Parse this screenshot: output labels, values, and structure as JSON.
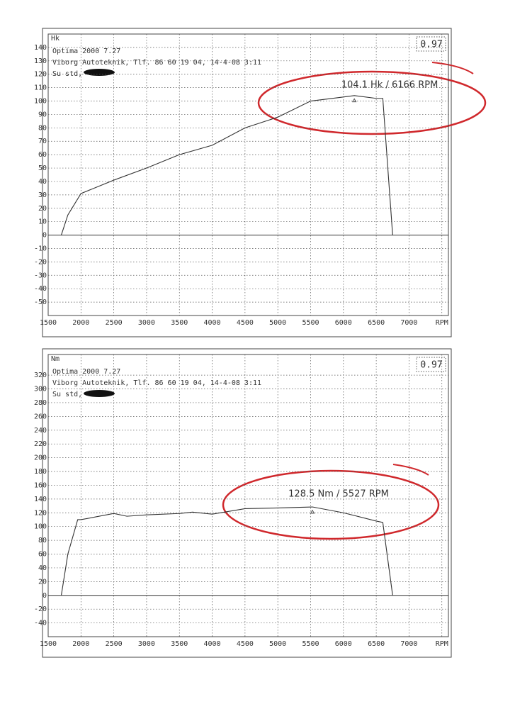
{
  "chart_data": [
    {
      "type": "line",
      "y_label": "Hk",
      "notes": [
        "Optima 2000 7.27",
        "Viborg Autoteknik, Tlf. 86 60 19 04, 14-4-08  3:11",
        "Su std,"
      ],
      "corner_label": "0.97",
      "annotation": "104.1 Hk / 6166 RPM",
      "x": [
        1700,
        1800,
        2000,
        2500,
        3000,
        3500,
        4000,
        4500,
        5000,
        5500,
        6000,
        6166,
        6500,
        6600,
        6750
      ],
      "series": [
        {
          "color": "#333333",
          "values": [
            0,
            15,
            31,
            41,
            50,
            60,
            67,
            80,
            88,
            100,
            103,
            104.1,
            102,
            102,
            0
          ]
        }
      ],
      "xlim": [
        1500,
        7600
      ],
      "xticks": [
        1500,
        2000,
        2500,
        3000,
        3500,
        4000,
        4500,
        5000,
        5500,
        6000,
        6500,
        7000,
        {
          "value": 7500,
          "label": "RPM"
        }
      ],
      "ylim": [
        -60,
        150
      ],
      "yticks": [
        140,
        130,
        120,
        110,
        100,
        90,
        80,
        70,
        60,
        50,
        40,
        30,
        20,
        10,
        0,
        -10,
        -20,
        -30,
        -40,
        -50
      ],
      "grid": true
    },
    {
      "type": "line",
      "y_label": "Nm",
      "notes": [
        "Optima 2000 7.27",
        "Viborg Autoteknik, Tlf. 86 60 19 04, 14-4-08  3:11",
        "Su std,"
      ],
      "corner_label": "0.97",
      "annotation": "128.5 Nm / 5527 RPM",
      "x": [
        1700,
        1800,
        1950,
        2000,
        2500,
        2700,
        3000,
        3500,
        3700,
        4000,
        4500,
        5000,
        5527,
        6000,
        6500,
        6600,
        6750
      ],
      "series": [
        {
          "color": "#333333",
          "values": [
            0,
            60,
            110,
            110,
            119,
            115,
            117,
            119,
            121,
            118,
            126,
            127,
            128.5,
            120,
            108,
            106,
            0
          ]
        }
      ],
      "xlim": [
        1500,
        7600
      ],
      "xticks": [
        1500,
        2000,
        2500,
        3000,
        3500,
        4000,
        4500,
        5000,
        5500,
        6000,
        6500,
        7000,
        {
          "value": 7500,
          "label": "RPM"
        }
      ],
      "ylim": [
        -60,
        350
      ],
      "yticks": [
        320,
        300,
        280,
        260,
        240,
        220,
        200,
        180,
        160,
        140,
        120,
        100,
        80,
        60,
        40,
        20,
        0,
        -20,
        -40
      ],
      "grid": true
    }
  ]
}
